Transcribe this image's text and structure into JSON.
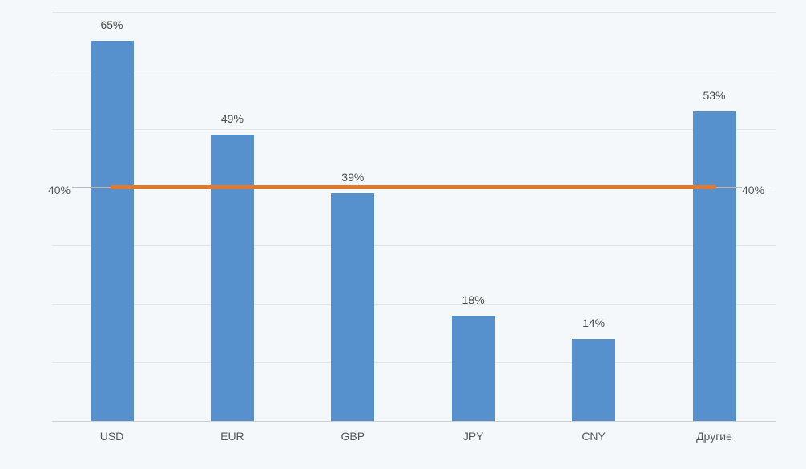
{
  "chart_data": {
    "type": "bar",
    "title": "",
    "xlabel": "",
    "ylabel": "",
    "categories": [
      "USD",
      "EUR",
      "GBP",
      "JPY",
      "CNY",
      "Другие"
    ],
    "values": [
      65,
      49,
      39,
      18,
      14,
      53
    ],
    "value_labels": [
      "65%",
      "49%",
      "39%",
      "18%",
      "14%",
      "53%"
    ],
    "ylim": [
      0,
      70
    ],
    "gridline_step": 10,
    "grid": true,
    "legend": "none",
    "y_axis_tick_labels": "none",
    "reference_line": {
      "value": 40,
      "label_left": "40%",
      "label_right": "40%"
    },
    "colors": {
      "bar": "#5691CE",
      "reference_line": "#E5792B",
      "background": "#F5F8FA",
      "gridline": "#E2E5E8",
      "axis_line": "#CDD1D5",
      "leader_line": "#B5B9BD",
      "value_label": "#474747",
      "category_label": "#53575C",
      "reference_label": "#515459"
    }
  }
}
